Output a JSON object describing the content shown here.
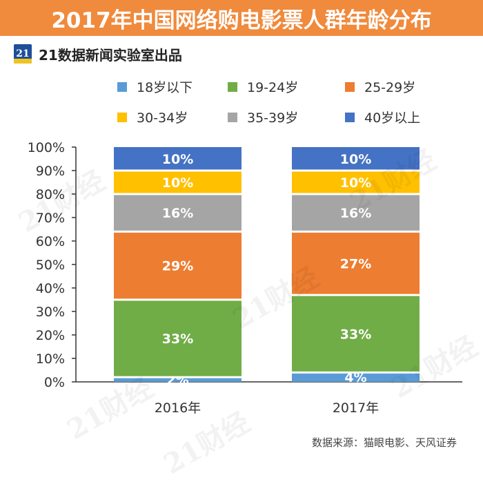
{
  "header": {
    "title": "2017年中国网络购电影票人群年龄分布",
    "logo_text": "21",
    "subtitle": "21数据新闻实验室出品"
  },
  "footer": {
    "source": "数据来源：猫眼电影、天风证券"
  },
  "watermark": "21财经",
  "colors": {
    "title_bg": "#f08a3c",
    "s18": "#5b9bd5",
    "s19_24": "#70ad47",
    "s25_29": "#ed7d31",
    "s30_34": "#ffc000",
    "s35_39": "#a5a5a5",
    "s40": "#4472c4"
  },
  "chart_data": {
    "type": "bar",
    "stacked": true,
    "categories": [
      "2016年",
      "2017年"
    ],
    "series": [
      {
        "name": "18岁以下",
        "values": [
          2,
          4
        ],
        "labels": [
          "2%",
          "4%"
        ],
        "color": "#5b9bd5"
      },
      {
        "name": "19-24岁",
        "values": [
          33,
          33
        ],
        "labels": [
          "33%",
          "33%"
        ],
        "color": "#70ad47"
      },
      {
        "name": "25-29岁",
        "values": [
          29,
          27
        ],
        "labels": [
          "29%",
          "27%"
        ],
        "color": "#ed7d31"
      },
      {
        "name": "30-34岁",
        "values": [
          10,
          10
        ],
        "labels": [
          "10%",
          "10%"
        ],
        "color": "#ffc000"
      },
      {
        "name": "35-39岁",
        "values": [
          16,
          16
        ],
        "labels": [
          "16%",
          "16%"
        ],
        "color": "#a5a5a5"
      },
      {
        "name": "40岁以上",
        "values": [
          10,
          10
        ],
        "labels": [
          "10%",
          "10%"
        ],
        "color": "#4472c4"
      }
    ],
    "stack_order": [
      "18岁以下",
      "19-24岁",
      "25-29岁",
      "35-39岁",
      "30-34岁",
      "40岁以上"
    ],
    "ylim": [
      0,
      100
    ],
    "yticks": [
      "0%",
      "10%",
      "20%",
      "30%",
      "40%",
      "50%",
      "60%",
      "70%",
      "80%",
      "90%",
      "100%"
    ],
    "legend": "top"
  }
}
